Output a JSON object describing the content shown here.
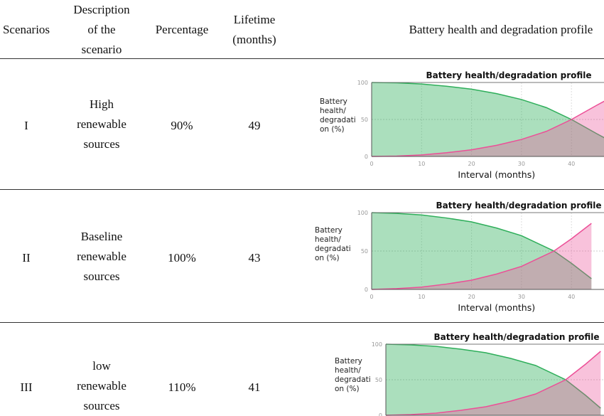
{
  "headers": {
    "scenarios": "Scenarios",
    "description": [
      "Description",
      "of the",
      "scenario"
    ],
    "percentage": "Percentage",
    "lifetime": [
      "Lifetime",
      "(months)"
    ],
    "profile": "Battery health and degradation profile"
  },
  "rows": [
    {
      "scenario": "I",
      "description": [
        "High",
        "renewable",
        "sources"
      ],
      "percentage": "90%",
      "lifetime": "49"
    },
    {
      "scenario": "II",
      "description": [
        "Baseline",
        "renewable",
        "sources"
      ],
      "percentage": "100%",
      "lifetime": "43"
    },
    {
      "scenario": "III",
      "description": [
        "low",
        "renewable",
        "sources"
      ],
      "percentage": "110%",
      "lifetime": "41"
    }
  ],
  "chart_data": [
    {
      "type": "area",
      "title": "Battery health/degradation profile",
      "xlabel": "Interval (months)",
      "ylabel": [
        "Battery",
        "health/",
        "degradati",
        "on (%)"
      ],
      "xticks": [
        0,
        10,
        20,
        30,
        40
      ],
      "yticks": [
        0,
        50,
        100
      ],
      "ylim": [
        0,
        100
      ],
      "grid": true,
      "x": [
        0,
        5,
        10,
        15,
        20,
        25,
        30,
        35,
        40,
        45,
        48
      ],
      "series": [
        {
          "values": [
            100,
            99.5,
            98,
            95,
            91,
            85,
            77,
            66,
            50,
            31,
            20
          ],
          "color": "#2eae5a"
        },
        {
          "values": [
            0,
            0.5,
            2,
            5,
            9,
            15,
            23,
            34,
            50,
            69,
            80
          ],
          "color": "#ec4f97"
        }
      ]
    },
    {
      "type": "area",
      "title": "Battery health/degradation profile",
      "xlabel": "Interval (months)",
      "ylabel": [
        "Battery",
        "health/",
        "degradati",
        "on (%)"
      ],
      "xticks": [
        0,
        10,
        20,
        30,
        40
      ],
      "yticks": [
        0,
        50,
        100
      ],
      "ylim": [
        0,
        100
      ],
      "grid": true,
      "x": [
        0,
        5,
        10,
        15,
        20,
        25,
        30,
        36.5,
        40,
        44
      ],
      "series": [
        {
          "values": [
            100,
            99,
            97,
            93,
            88,
            80,
            70,
            50,
            34,
            14
          ],
          "color": "#2eae5a"
        },
        {
          "values": [
            0,
            1,
            3,
            7,
            12,
            20,
            30,
            50,
            66,
            86
          ],
          "color": "#ec4f97"
        }
      ]
    },
    {
      "type": "area",
      "title": "Battery health/degradation profile",
      "xlabel": "",
      "ylabel": [
        "Battery",
        "health/",
        "degradati",
        "on (%)"
      ],
      "xticks": [],
      "yticks": [
        0,
        50,
        100
      ],
      "ylim": [
        0,
        100
      ],
      "grid": true,
      "x": [
        0,
        5,
        10,
        15,
        20,
        25,
        30,
        36,
        40,
        43
      ],
      "series": [
        {
          "values": [
            100,
            99,
            97,
            93,
            88,
            80,
            70,
            50,
            28,
            10
          ],
          "color": "#2eae5a"
        },
        {
          "values": [
            0,
            1,
            3,
            7,
            12,
            20,
            30,
            50,
            72,
            90
          ],
          "color": "#ec4f97"
        }
      ]
    }
  ]
}
